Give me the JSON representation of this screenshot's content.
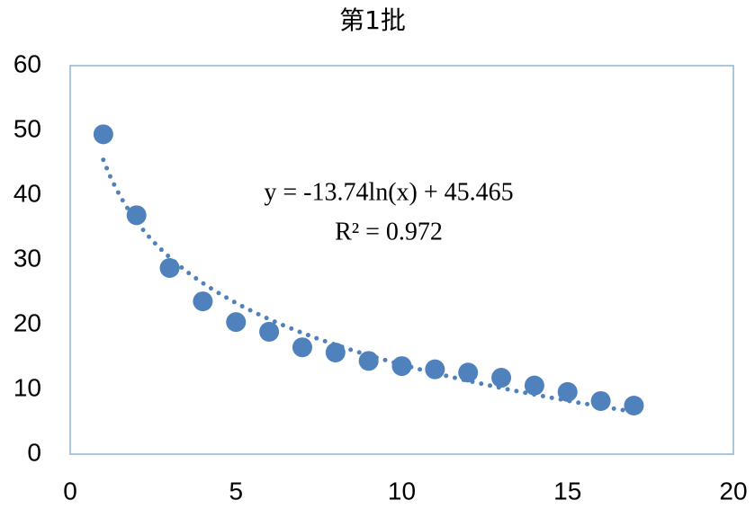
{
  "chart_data": {
    "type": "scatter",
    "title": "第1批",
    "x": [
      1,
      2,
      3,
      4,
      5,
      6,
      7,
      8,
      9,
      10,
      11,
      12,
      13,
      14,
      15,
      16,
      17
    ],
    "values": [
      49.4,
      36.9,
      28.75,
      23.6,
      20.4,
      18.9,
      16.5,
      15.7,
      14.4,
      13.6,
      13.1,
      12.6,
      11.8,
      10.6,
      9.6,
      8.2,
      7.5
    ],
    "color": "#4f81bd",
    "xlim": [
      0,
      20
    ],
    "xticks": [
      0,
      5,
      10,
      15,
      20
    ],
    "ylim": [
      0,
      60
    ],
    "yticks": [
      0,
      10,
      20,
      30,
      40,
      50,
      60
    ],
    "trendline": {
      "type": "log",
      "slope": -13.74,
      "intercept": 45.465,
      "equation": "y = -13.74ln(x) + 45.465",
      "r_squared_label": "R² = 0.972"
    }
  }
}
